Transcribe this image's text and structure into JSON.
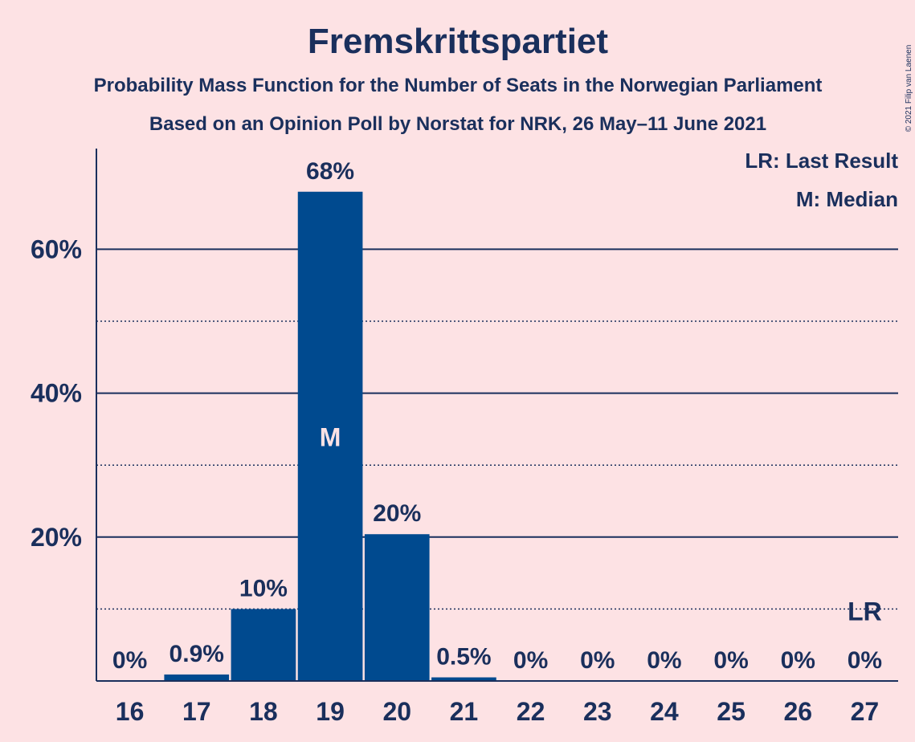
{
  "chart_data": {
    "type": "bar",
    "title": "Fremskrittspartiet",
    "subtitle_1": "Probability Mass Function for the Number of Seats in the Norwegian Parliament",
    "subtitle_2": "Based on an Opinion Poll by Norstat for NRK, 26 May–11 June 2021",
    "categories": [
      "16",
      "17",
      "18",
      "19",
      "20",
      "21",
      "22",
      "23",
      "24",
      "25",
      "26",
      "27"
    ],
    "values": [
      0,
      0.9,
      10,
      68,
      20.4,
      0.5,
      0,
      0,
      0,
      0,
      0,
      0
    ],
    "data_labels": [
      "0%",
      "0.9%",
      "10%",
      "68%",
      "20%",
      "0.5%",
      "0%",
      "0%",
      "0%",
      "0%",
      "0%",
      "0%"
    ],
    "ylim": [
      0,
      74
    ],
    "yticks": [
      {
        "value": 20,
        "label": "20%"
      },
      {
        "value": 40,
        "label": "40%"
      },
      {
        "value": 60,
        "label": "60%"
      }
    ],
    "minor_gridlines": [
      10,
      30,
      50
    ],
    "median": {
      "category": "19",
      "label": "M"
    },
    "last_result": {
      "category": "27",
      "label": "LR",
      "value": 10
    },
    "legend": [
      "LR: Last Result",
      "M: Median"
    ],
    "legend_position": "top-right",
    "copyright": "© 2021 Filip van Laenen",
    "colors": {
      "bar": "#004A8F",
      "background": "#FDE2E4",
      "text": "#1A2F5C",
      "median_label": "#FDE2E4"
    }
  }
}
